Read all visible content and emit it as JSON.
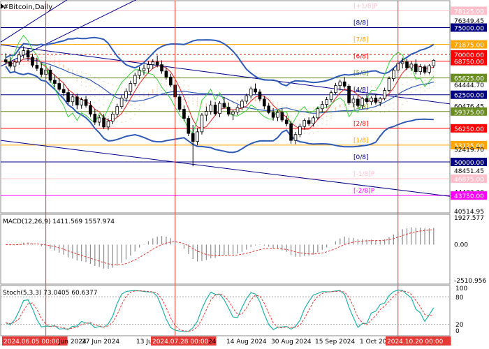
{
  "chart_data": {
    "type": "candlestick",
    "symbol_label": "#Bitcoin,Daily",
    "colors": {
      "bull_body": "#ffffff",
      "bear_body": "#000000",
      "candle_outline": "#000000",
      "bollinger": "#2f5bb7",
      "envelope": "#2f5bb7",
      "ma_fast": "#e02020",
      "ma_slow": "#3bd13b",
      "channel": "#00008b",
      "cloud": "#f4a460",
      "vertical_marker": "#e53935",
      "macd_signal": "#e53935",
      "stoch_main": "#20b2aa",
      "stoch_signal": "#e53935"
    },
    "price_axis": {
      "range": [
        40514.95,
        80000
      ],
      "labels": [
        {
          "value": 78125.0,
          "text": "78125.00",
          "bg": "#ffc0cb",
          "fg": "#ffffff"
        },
        {
          "value": 76349.45,
          "text": "76349.45",
          "bg": "",
          "fg": "#000000"
        },
        {
          "value": 75000.0,
          "text": "75000.00",
          "bg": "#000080",
          "fg": "#ffffff"
        },
        {
          "value": 71875.0,
          "text": "71875.00",
          "bg": "#ffa500",
          "fg": "#ffffff"
        },
        {
          "value": 70000.0,
          "text": "70000.00",
          "bg": "#ff0000",
          "fg": "#ffffff"
        },
        {
          "value": 68750.0,
          "text": "68750.00",
          "bg": "#ff0000",
          "fg": "#ffffff"
        },
        {
          "value": 65625.0,
          "text": "65625.00",
          "bg": "#6b8e23",
          "fg": "#ffffff"
        },
        {
          "value": 64444.7,
          "text": "64444.70",
          "bg": "",
          "fg": "#000000"
        },
        {
          "value": 62500.0,
          "text": "62500.00",
          "bg": "#000080",
          "fg": "#ffffff"
        },
        {
          "value": 60476.45,
          "text": "60476.45",
          "bg": "",
          "fg": "#000000"
        },
        {
          "value": 59375.0,
          "text": "59375.00",
          "bg": "#6b8e23",
          "fg": "#ffffff"
        },
        {
          "value": 56250.0,
          "text": "56250.00",
          "bg": "#ff0000",
          "fg": "#ffffff"
        },
        {
          "value": 53125.0,
          "text": "53125.00",
          "bg": "#ffa500",
          "fg": "#ffffff"
        },
        {
          "value": 52419.7,
          "text": "52419.70",
          "bg": "",
          "fg": "#000000"
        },
        {
          "value": 50000.0,
          "text": "50000.00",
          "bg": "#000080",
          "fg": "#ffffff"
        },
        {
          "value": 48451.45,
          "text": "48451.45",
          "bg": "",
          "fg": "#000000"
        },
        {
          "value": 46875.0,
          "text": "46875.00",
          "bg": "#ffc0cb",
          "fg": "#ffffff"
        },
        {
          "value": 44482.2,
          "text": "44482.20",
          "bg": "",
          "fg": "#000000"
        },
        {
          "value": 43750.0,
          "text": "43750.00",
          "bg": "#ff00ff",
          "fg": "#ffffff"
        },
        {
          "value": 40514.95,
          "text": "40514.95",
          "bg": "",
          "fg": "#000000"
        }
      ]
    },
    "murrey_lines": [
      {
        "value": 78125,
        "label": "[+1/8]P",
        "color": "#ffc0cb"
      },
      {
        "value": 75000,
        "label": "[8/8]",
        "color": "#000080"
      },
      {
        "value": 71875,
        "label": "[7/8]",
        "color": "#ffa500"
      },
      {
        "value": 68750,
        "label": "[6/8]",
        "color": "#ff0000"
      },
      {
        "value": 65625,
        "label": "[5/8]",
        "color": "#6b8e23"
      },
      {
        "value": 62500,
        "label": "[4/8]",
        "color": "#000080"
      },
      {
        "value": 59375,
        "label": "[3/8]",
        "color": "#6b8e23"
      },
      {
        "value": 56250,
        "label": "[2/8]",
        "color": "#ff0000"
      },
      {
        "value": 53125,
        "label": "[1/8]",
        "color": "#ffa500"
      },
      {
        "value": 50000,
        "label": "[0/8]",
        "color": "#000080"
      },
      {
        "value": 46875,
        "label": "[-1/8]P",
        "color": "#ffc0cb"
      },
      {
        "value": 43750,
        "label": "[-2/8]P",
        "color": "#ff00ff"
      }
    ],
    "dashed_level": 70000,
    "time_axis": {
      "labels": [
        "2024.06.05 00:00",
        "Jun 2024",
        "27 Jun 2024",
        "13 Jul",
        "2024.07.28 00:00",
        "24",
        "14 Aug 2024",
        "30 Aug 2024",
        "15 Sep 2024",
        "1 Oct 20",
        "2024.10.20 00:00"
      ],
      "highlighted": [
        "2024.06.05 00:00",
        "2024.07.28 00:00",
        "2024.10.20 00:00"
      ]
    },
    "candles": [
      [
        69000,
        70200,
        68100,
        68600
      ],
      [
        68600,
        69500,
        67400,
        67800
      ],
      [
        67800,
        69000,
        66900,
        68600
      ],
      [
        68600,
        70600,
        68100,
        69900
      ],
      [
        69900,
        71500,
        69300,
        70700
      ],
      [
        70700,
        71100,
        68800,
        69500
      ],
      [
        69500,
        70100,
        67600,
        68000
      ],
      [
        68000,
        69400,
        66900,
        67400
      ],
      [
        67400,
        68300,
        65800,
        66300
      ],
      [
        66300,
        67600,
        65400,
        67100
      ],
      [
        67100,
        67800,
        64700,
        65200
      ],
      [
        65200,
        66300,
        63900,
        64600
      ],
      [
        64600,
        65600,
        63100,
        63500
      ],
      [
        63500,
        64600,
        62200,
        62900
      ],
      [
        62900,
        63700,
        60700,
        61200
      ],
      [
        61200,
        62600,
        60400,
        62100
      ],
      [
        62100,
        62700,
        59800,
        60600
      ],
      [
        60600,
        62000,
        59900,
        61600
      ],
      [
        61600,
        62300,
        60100,
        60500
      ],
      [
        60500,
        61300,
        58400,
        58900
      ],
      [
        58900,
        59900,
        56900,
        57400
      ],
      [
        57400,
        58700,
        56700,
        58200
      ],
      [
        58200,
        58900,
        56100,
        56500
      ],
      [
        56500,
        58100,
        55900,
        57600
      ],
      [
        57600,
        59300,
        57000,
        58900
      ],
      [
        58900,
        60800,
        58300,
        60300
      ],
      [
        60300,
        62400,
        59900,
        61900
      ],
      [
        61900,
        63700,
        61200,
        63100
      ],
      [
        63100,
        65100,
        62400,
        64600
      ],
      [
        64600,
        66600,
        64100,
        66100
      ],
      [
        66100,
        67700,
        65400,
        67000
      ],
      [
        67000,
        68100,
        66100,
        67400
      ],
      [
        67400,
        68700,
        66600,
        68100
      ],
      [
        68100,
        69100,
        67300,
        68600
      ],
      [
        68600,
        69800,
        67600,
        68100
      ],
      [
        68100,
        68900,
        66400,
        66900
      ],
      [
        66900,
        67600,
        65300,
        65800
      ],
      [
        65800,
        66400,
        63900,
        64300
      ],
      [
        64300,
        65100,
        61700,
        62100
      ],
      [
        62100,
        62600,
        59300,
        59800
      ],
      [
        59800,
        60500,
        57600,
        58100
      ],
      [
        58100,
        58600,
        54800,
        55300
      ],
      [
        55300,
        56900,
        49200,
        53800
      ],
      [
        53800,
        56300,
        53100,
        55600
      ],
      [
        55600,
        59100,
        55100,
        58700
      ],
      [
        58700,
        60300,
        57600,
        59400
      ],
      [
        59400,
        61400,
        58800,
        60600
      ],
      [
        60600,
        61200,
        58600,
        59000
      ],
      [
        59000,
        61300,
        58300,
        60900
      ],
      [
        60900,
        62100,
        59900,
        60200
      ],
      [
        60200,
        61000,
        58500,
        58900
      ],
      [
        58900,
        59700,
        57800,
        59300
      ],
      [
        59300,
        60600,
        58700,
        60100
      ],
      [
        60100,
        61700,
        59600,
        61300
      ],
      [
        61300,
        62700,
        60800,
        62300
      ],
      [
        62300,
        64000,
        61800,
        63600
      ],
      [
        63600,
        64600,
        62600,
        63000
      ],
      [
        63000,
        63500,
        61300,
        61700
      ],
      [
        61700,
        62300,
        59800,
        60400
      ],
      [
        60400,
        60900,
        58900,
        59200
      ],
      [
        59200,
        60000,
        57700,
        58300
      ],
      [
        58300,
        59600,
        57600,
        59200
      ],
      [
        59200,
        59900,
        57400,
        57800
      ],
      [
        57800,
        58600,
        56600,
        57100
      ],
      [
        57100,
        57600,
        53400,
        54000
      ],
      [
        54000,
        55600,
        53300,
        55100
      ],
      [
        55100,
        57100,
        54600,
        56600
      ],
      [
        56600,
        58100,
        56000,
        57700
      ],
      [
        57700,
        58300,
        56700,
        57100
      ],
      [
        57100,
        58600,
        56600,
        58200
      ],
      [
        58200,
        60300,
        57900,
        59900
      ],
      [
        59900,
        61300,
        59300,
        60700
      ],
      [
        60700,
        62100,
        60100,
        61600
      ],
      [
        61600,
        63300,
        61100,
        62900
      ],
      [
        62900,
        64700,
        62600,
        64200
      ],
      [
        64200,
        65300,
        63300,
        64900
      ],
      [
        64900,
        65800,
        63700,
        64100
      ],
      [
        64100,
        64500,
        60600,
        61000
      ],
      [
        61000,
        62300,
        60200,
        61700
      ],
      [
        61700,
        62400,
        60100,
        60500
      ],
      [
        60500,
        62100,
        59900,
        61800
      ],
      [
        61800,
        62600,
        60800,
        61200
      ],
      [
        61200,
        62200,
        60600,
        61900
      ],
      [
        61900,
        62600,
        60700,
        61100
      ],
      [
        61100,
        62100,
        60400,
        61800
      ],
      [
        61800,
        63800,
        61500,
        63300
      ],
      [
        63300,
        65900,
        63000,
        65500
      ],
      [
        65500,
        67400,
        65000,
        67100
      ],
      [
        67100,
        68700,
        66500,
        68300
      ],
      [
        68300,
        69400,
        67400,
        68600
      ],
      [
        68600,
        69200,
        67100,
        67500
      ],
      [
        67500,
        68700,
        66900,
        68200
      ],
      [
        68200,
        69100,
        66300,
        66800
      ],
      [
        66800,
        68200,
        66200,
        67700
      ],
      [
        67700,
        68100,
        66300,
        66700
      ],
      [
        66700,
        68200,
        66300,
        67900
      ],
      [
        67900,
        69100,
        67500,
        68900
      ]
    ],
    "macd": {
      "label": "MACD(12,26,9) 1411.569 1557.974",
      "fast": 12,
      "slow": 26,
      "signal_period": 9,
      "main": 1411.569,
      "signal": 1557.974,
      "axis": [
        "1927.577",
        "0.00",
        "-2510.956"
      ]
    },
    "stochastic": {
      "label": "Stoch(5,3,3) 73.0405 60.6377",
      "k": 5,
      "d": 3,
      "slowing": 3,
      "main": 73.0405,
      "signal": 60.6377,
      "levels": [
        20,
        80
      ],
      "axis": [
        "100",
        "80",
        "20",
        "0"
      ]
    }
  }
}
